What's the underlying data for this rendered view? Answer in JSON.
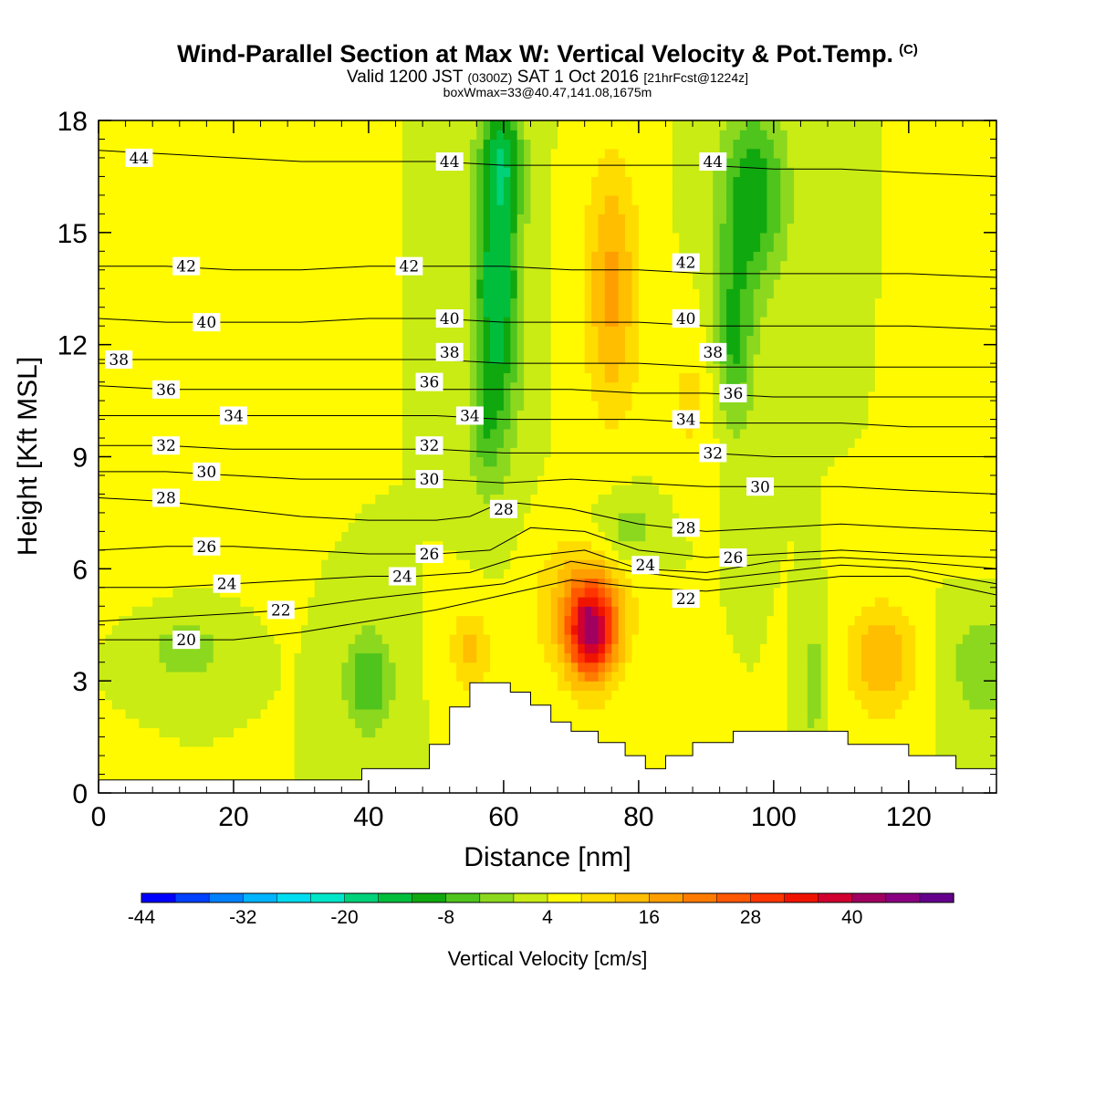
{
  "header": {
    "title": "Wind-Parallel Section at Max W: Vertical Velocity & Pot.Temp.",
    "copyright": "(C)",
    "valid_prefix": "Valid 1200 JST",
    "valid_utc": "(0300Z)",
    "valid_date": "SAT 1 Oct 2016",
    "forecast": "[21hrFcst@1224z]",
    "box_info": "boxWmax=33@40.47,141.08,1675m"
  },
  "colors": {
    "scale": [
      "#0000ff",
      "#0040ff",
      "#0080ff",
      "#00b4ff",
      "#00dcf0",
      "#00e6c8",
      "#00d27a",
      "#00be3c",
      "#10a80f",
      "#4ec41c",
      "#8cd81e",
      "#c8ec14",
      "#fffa00",
      "#ffdc00",
      "#ffbe00",
      "#ff9e00",
      "#ff7b00",
      "#ff5800",
      "#ff3500",
      "#f01400",
      "#d00030",
      "#a00060",
      "#8a0080",
      "#64008c"
    ],
    "terrain": "#ffffff",
    "contour": "#000000"
  },
  "colorbar": {
    "ticks": [
      "-44",
      "-32",
      "-20",
      "-8",
      "4",
      "16",
      "28",
      "40"
    ],
    "label": "Vertical Velocity [cm/s]"
  },
  "chart_data": {
    "type": "heatmap",
    "xlabel": "Distance [nm]",
    "ylabel": "Height [Kft MSL]",
    "xlim": [
      0,
      133
    ],
    "ylim": [
      0,
      18
    ],
    "xticks": [
      "0",
      "20",
      "40",
      "60",
      "80",
      "100",
      "120"
    ],
    "yticks": [
      "0",
      "3",
      "6",
      "9",
      "12",
      "15",
      "18"
    ],
    "color_variable": "Vertical Velocity [cm/s]",
    "color_range": [
      -48,
      48
    ],
    "background_w": 0,
    "w_features": [
      {
        "x": 59,
        "y": 13.5,
        "sx": 3.5,
        "sy": 4.0,
        "w": -20
      },
      {
        "x": 60,
        "y": 17.0,
        "sx": 3.0,
        "sy": 1.5,
        "w": -12
      },
      {
        "x": 57,
        "y": 9.5,
        "sx": 2.5,
        "sy": 1.5,
        "w": -6
      },
      {
        "x": 76,
        "y": 13.5,
        "sx": 4.0,
        "sy": 3.5,
        "w": 13
      },
      {
        "x": 97,
        "y": 16.0,
        "sx": 5.0,
        "sy": 2.5,
        "w": -15
      },
      {
        "x": 94,
        "y": 12.0,
        "sx": 3.0,
        "sy": 2.5,
        "w": -13
      },
      {
        "x": 88,
        "y": 10.5,
        "sx": 5.0,
        "sy": 2.0,
        "w": 5
      },
      {
        "x": 73,
        "y": 4.3,
        "sx": 3.5,
        "sy": 1.3,
        "w": 30
      },
      {
        "x": 72,
        "y": 5.0,
        "sx": 7.0,
        "sy": 1.8,
        "w": 12
      },
      {
        "x": 40,
        "y": 3.0,
        "sx": 3.5,
        "sy": 1.4,
        "w": -12
      },
      {
        "x": 13,
        "y": 3.8,
        "sx": 5.0,
        "sy": 0.8,
        "w": -8
      },
      {
        "x": 55,
        "y": 3.8,
        "sx": 3.0,
        "sy": 1.2,
        "w": 9
      },
      {
        "x": 116,
        "y": 3.6,
        "sx": 5.0,
        "sy": 1.5,
        "w": 12
      },
      {
        "x": 106,
        "y": 3.0,
        "sx": 1.5,
        "sy": 1.5,
        "w": -8
      },
      {
        "x": 131,
        "y": 3.5,
        "sx": 5.0,
        "sy": 1.5,
        "w": -8
      },
      {
        "x": 130,
        "y": 11.0,
        "sx": 4.0,
        "sy": 5.0,
        "w": 3
      },
      {
        "x": 78,
        "y": 7.0,
        "sx": 5.0,
        "sy": 1.0,
        "w": -7
      },
      {
        "x": 20,
        "y": 13.0,
        "sx": 7.0,
        "sy": 4.0,
        "w": 2
      },
      {
        "x": 7,
        "y": 9.0,
        "sx": 5.0,
        "sy": 3.0,
        "w": 1
      }
    ],
    "terrain_steps": [
      [
        0,
        0.35
      ],
      [
        39,
        0.35
      ],
      [
        39,
        0.65
      ],
      [
        49,
        0.65
      ],
      [
        49,
        1.3
      ],
      [
        52,
        1.3
      ],
      [
        52,
        2.3
      ],
      [
        55,
        2.3
      ],
      [
        55,
        2.95
      ],
      [
        61,
        2.95
      ],
      [
        61,
        2.7
      ],
      [
        64,
        2.7
      ],
      [
        64,
        2.35
      ],
      [
        67,
        2.35
      ],
      [
        67,
        1.9
      ],
      [
        70,
        1.9
      ],
      [
        70,
        1.65
      ],
      [
        74,
        1.65
      ],
      [
        74,
        1.35
      ],
      [
        78,
        1.35
      ],
      [
        78,
        1.0
      ],
      [
        81,
        1.0
      ],
      [
        81,
        0.65
      ],
      [
        84,
        0.65
      ],
      [
        84,
        1.0
      ],
      [
        88,
        1.0
      ],
      [
        88,
        1.35
      ],
      [
        94,
        1.35
      ],
      [
        94,
        1.65
      ],
      [
        111,
        1.65
      ],
      [
        111,
        1.3
      ],
      [
        120,
        1.3
      ],
      [
        120,
        1.0
      ],
      [
        127,
        1.0
      ],
      [
        127,
        0.65
      ],
      [
        133,
        0.65
      ]
    ],
    "theta_contours": [
      {
        "label": "20",
        "pts": [
          [
            0,
            4.1
          ],
          [
            10,
            4.1
          ],
          [
            20,
            4.1
          ],
          [
            30,
            4.3
          ],
          [
            40,
            4.6
          ],
          [
            50,
            4.9
          ],
          [
            60,
            5.3
          ],
          [
            70,
            5.7
          ],
          [
            80,
            5.5
          ],
          [
            90,
            5.4
          ],
          [
            100,
            5.6
          ],
          [
            110,
            5.8
          ],
          [
            120,
            5.8
          ],
          [
            133,
            5.3
          ]
        ],
        "labels": [
          [
            13,
            4.1
          ]
        ]
      },
      {
        "label": "22",
        "pts": [
          [
            0,
            4.6
          ],
          [
            10,
            4.7
          ],
          [
            20,
            4.8
          ],
          [
            28,
            4.9
          ],
          [
            40,
            5.2
          ],
          [
            50,
            5.4
          ],
          [
            60,
            5.6
          ],
          [
            70,
            6.2
          ],
          [
            80,
            5.9
          ],
          [
            90,
            5.7
          ],
          [
            100,
            5.9
          ],
          [
            110,
            6.1
          ],
          [
            120,
            6.0
          ],
          [
            133,
            5.6
          ]
        ],
        "labels": [
          [
            27,
            4.9
          ],
          [
            87,
            5.2
          ]
        ]
      },
      {
        "label": "24",
        "pts": [
          [
            0,
            5.5
          ],
          [
            10,
            5.5
          ],
          [
            20,
            5.6
          ],
          [
            30,
            5.7
          ],
          [
            40,
            5.8
          ],
          [
            47,
            5.8
          ],
          [
            55,
            5.9
          ],
          [
            62,
            6.3
          ],
          [
            72,
            6.5
          ],
          [
            80,
            6.0
          ],
          [
            90,
            5.9
          ],
          [
            100,
            6.2
          ],
          [
            110,
            6.3
          ],
          [
            120,
            6.2
          ],
          [
            133,
            6.0
          ]
        ],
        "labels": [
          [
            19,
            5.6
          ],
          [
            45,
            5.8
          ],
          [
            81,
            6.1
          ]
        ]
      },
      {
        "label": "26",
        "pts": [
          [
            0,
            6.5
          ],
          [
            10,
            6.6
          ],
          [
            20,
            6.6
          ],
          [
            30,
            6.5
          ],
          [
            40,
            6.4
          ],
          [
            50,
            6.4
          ],
          [
            58,
            6.5
          ],
          [
            64,
            7.1
          ],
          [
            72,
            7.0
          ],
          [
            80,
            6.5
          ],
          [
            90,
            6.3
          ],
          [
            100,
            6.4
          ],
          [
            110,
            6.5
          ],
          [
            120,
            6.4
          ],
          [
            133,
            6.3
          ]
        ],
        "labels": [
          [
            16,
            6.6
          ],
          [
            49,
            6.4
          ],
          [
            94,
            6.3
          ]
        ]
      },
      {
        "label": "28",
        "pts": [
          [
            0,
            7.9
          ],
          [
            10,
            7.8
          ],
          [
            20,
            7.6
          ],
          [
            30,
            7.4
          ],
          [
            40,
            7.3
          ],
          [
            50,
            7.3
          ],
          [
            55,
            7.4
          ],
          [
            60,
            7.8
          ],
          [
            70,
            7.6
          ],
          [
            80,
            7.2
          ],
          [
            90,
            7.0
          ],
          [
            100,
            7.1
          ],
          [
            110,
            7.2
          ],
          [
            120,
            7.1
          ],
          [
            133,
            7.0
          ]
        ],
        "labels": [
          [
            10,
            7.9
          ],
          [
            60,
            7.6
          ],
          [
            87,
            7.1
          ]
        ]
      },
      {
        "label": "30",
        "pts": [
          [
            0,
            8.6
          ],
          [
            10,
            8.6
          ],
          [
            20,
            8.5
          ],
          [
            30,
            8.4
          ],
          [
            40,
            8.4
          ],
          [
            50,
            8.4
          ],
          [
            60,
            8.3
          ],
          [
            70,
            8.4
          ],
          [
            80,
            8.3
          ],
          [
            90,
            8.2
          ],
          [
            100,
            8.2
          ],
          [
            110,
            8.2
          ],
          [
            120,
            8.1
          ],
          [
            133,
            8.0
          ]
        ],
        "labels": [
          [
            16,
            8.6
          ],
          [
            49,
            8.4
          ],
          [
            98,
            8.2
          ]
        ]
      },
      {
        "label": "32",
        "pts": [
          [
            0,
            9.3
          ],
          [
            10,
            9.3
          ],
          [
            20,
            9.2
          ],
          [
            30,
            9.2
          ],
          [
            40,
            9.2
          ],
          [
            50,
            9.2
          ],
          [
            60,
            9.1
          ],
          [
            70,
            9.1
          ],
          [
            80,
            9.1
          ],
          [
            90,
            9.1
          ],
          [
            100,
            9.0
          ],
          [
            110,
            9.0
          ],
          [
            120,
            9.0
          ],
          [
            133,
            9.0
          ]
        ],
        "labels": [
          [
            10,
            9.3
          ],
          [
            49,
            9.3
          ],
          [
            91,
            9.1
          ]
        ]
      },
      {
        "label": "34",
        "pts": [
          [
            0,
            10.1
          ],
          [
            10,
            10.1
          ],
          [
            20,
            10.1
          ],
          [
            30,
            10.1
          ],
          [
            40,
            10.1
          ],
          [
            50,
            10.1
          ],
          [
            60,
            10.0
          ],
          [
            70,
            10.0
          ],
          [
            80,
            10.0
          ],
          [
            90,
            9.9
          ],
          [
            100,
            9.9
          ],
          [
            110,
            9.9
          ],
          [
            120,
            9.8
          ],
          [
            133,
            9.8
          ]
        ],
        "labels": [
          [
            20,
            10.1
          ],
          [
            55,
            10.1
          ],
          [
            87,
            10.0
          ]
        ]
      },
      {
        "label": "36",
        "pts": [
          [
            0,
            10.9
          ],
          [
            10,
            10.8
          ],
          [
            20,
            10.8
          ],
          [
            30,
            10.8
          ],
          [
            40,
            10.8
          ],
          [
            50,
            10.8
          ],
          [
            60,
            10.8
          ],
          [
            70,
            10.8
          ],
          [
            80,
            10.7
          ],
          [
            90,
            10.7
          ],
          [
            100,
            10.6
          ],
          [
            110,
            10.6
          ],
          [
            120,
            10.6
          ],
          [
            133,
            10.6
          ]
        ],
        "labels": [
          [
            10,
            10.8
          ],
          [
            49,
            11.0
          ],
          [
            94,
            10.7
          ]
        ]
      },
      {
        "label": "38",
        "pts": [
          [
            0,
            11.6
          ],
          [
            10,
            11.6
          ],
          [
            20,
            11.6
          ],
          [
            30,
            11.6
          ],
          [
            40,
            11.6
          ],
          [
            50,
            11.6
          ],
          [
            60,
            11.5
          ],
          [
            70,
            11.5
          ],
          [
            80,
            11.5
          ],
          [
            90,
            11.4
          ],
          [
            100,
            11.4
          ],
          [
            110,
            11.4
          ],
          [
            120,
            11.4
          ],
          [
            133,
            11.4
          ]
        ],
        "labels": [
          [
            3,
            11.6
          ],
          [
            52,
            11.8
          ],
          [
            91,
            11.8
          ]
        ]
      },
      {
        "label": "40",
        "pts": [
          [
            0,
            12.7
          ],
          [
            10,
            12.6
          ],
          [
            20,
            12.6
          ],
          [
            30,
            12.6
          ],
          [
            40,
            12.7
          ],
          [
            50,
            12.7
          ],
          [
            60,
            12.6
          ],
          [
            70,
            12.6
          ],
          [
            80,
            12.6
          ],
          [
            90,
            12.5
          ],
          [
            100,
            12.5
          ],
          [
            110,
            12.5
          ],
          [
            120,
            12.5
          ],
          [
            133,
            12.4
          ]
        ],
        "labels": [
          [
            16,
            12.6
          ],
          [
            52,
            12.7
          ],
          [
            87,
            12.7
          ]
        ]
      },
      {
        "label": "42",
        "pts": [
          [
            0,
            14.1
          ],
          [
            10,
            14.1
          ],
          [
            20,
            14.0
          ],
          [
            30,
            14.0
          ],
          [
            40,
            14.1
          ],
          [
            50,
            14.1
          ],
          [
            60,
            14.1
          ],
          [
            70,
            14.0
          ],
          [
            80,
            14.0
          ],
          [
            90,
            13.9
          ],
          [
            100,
            13.9
          ],
          [
            110,
            13.9
          ],
          [
            120,
            13.9
          ],
          [
            133,
            13.8
          ]
        ],
        "labels": [
          [
            13,
            14.1
          ],
          [
            46,
            14.1
          ],
          [
            87,
            14.2
          ]
        ]
      },
      {
        "label": "44",
        "pts": [
          [
            0,
            17.2
          ],
          [
            10,
            17.1
          ],
          [
            20,
            17.0
          ],
          [
            30,
            16.9
          ],
          [
            40,
            16.9
          ],
          [
            50,
            16.9
          ],
          [
            60,
            16.8
          ],
          [
            70,
            16.8
          ],
          [
            80,
            16.8
          ],
          [
            90,
            16.8
          ],
          [
            100,
            16.7
          ],
          [
            110,
            16.7
          ],
          [
            120,
            16.6
          ],
          [
            133,
            16.5
          ]
        ],
        "labels": [
          [
            6,
            17.0
          ],
          [
            52,
            16.9
          ],
          [
            91,
            16.9
          ]
        ]
      }
    ]
  }
}
